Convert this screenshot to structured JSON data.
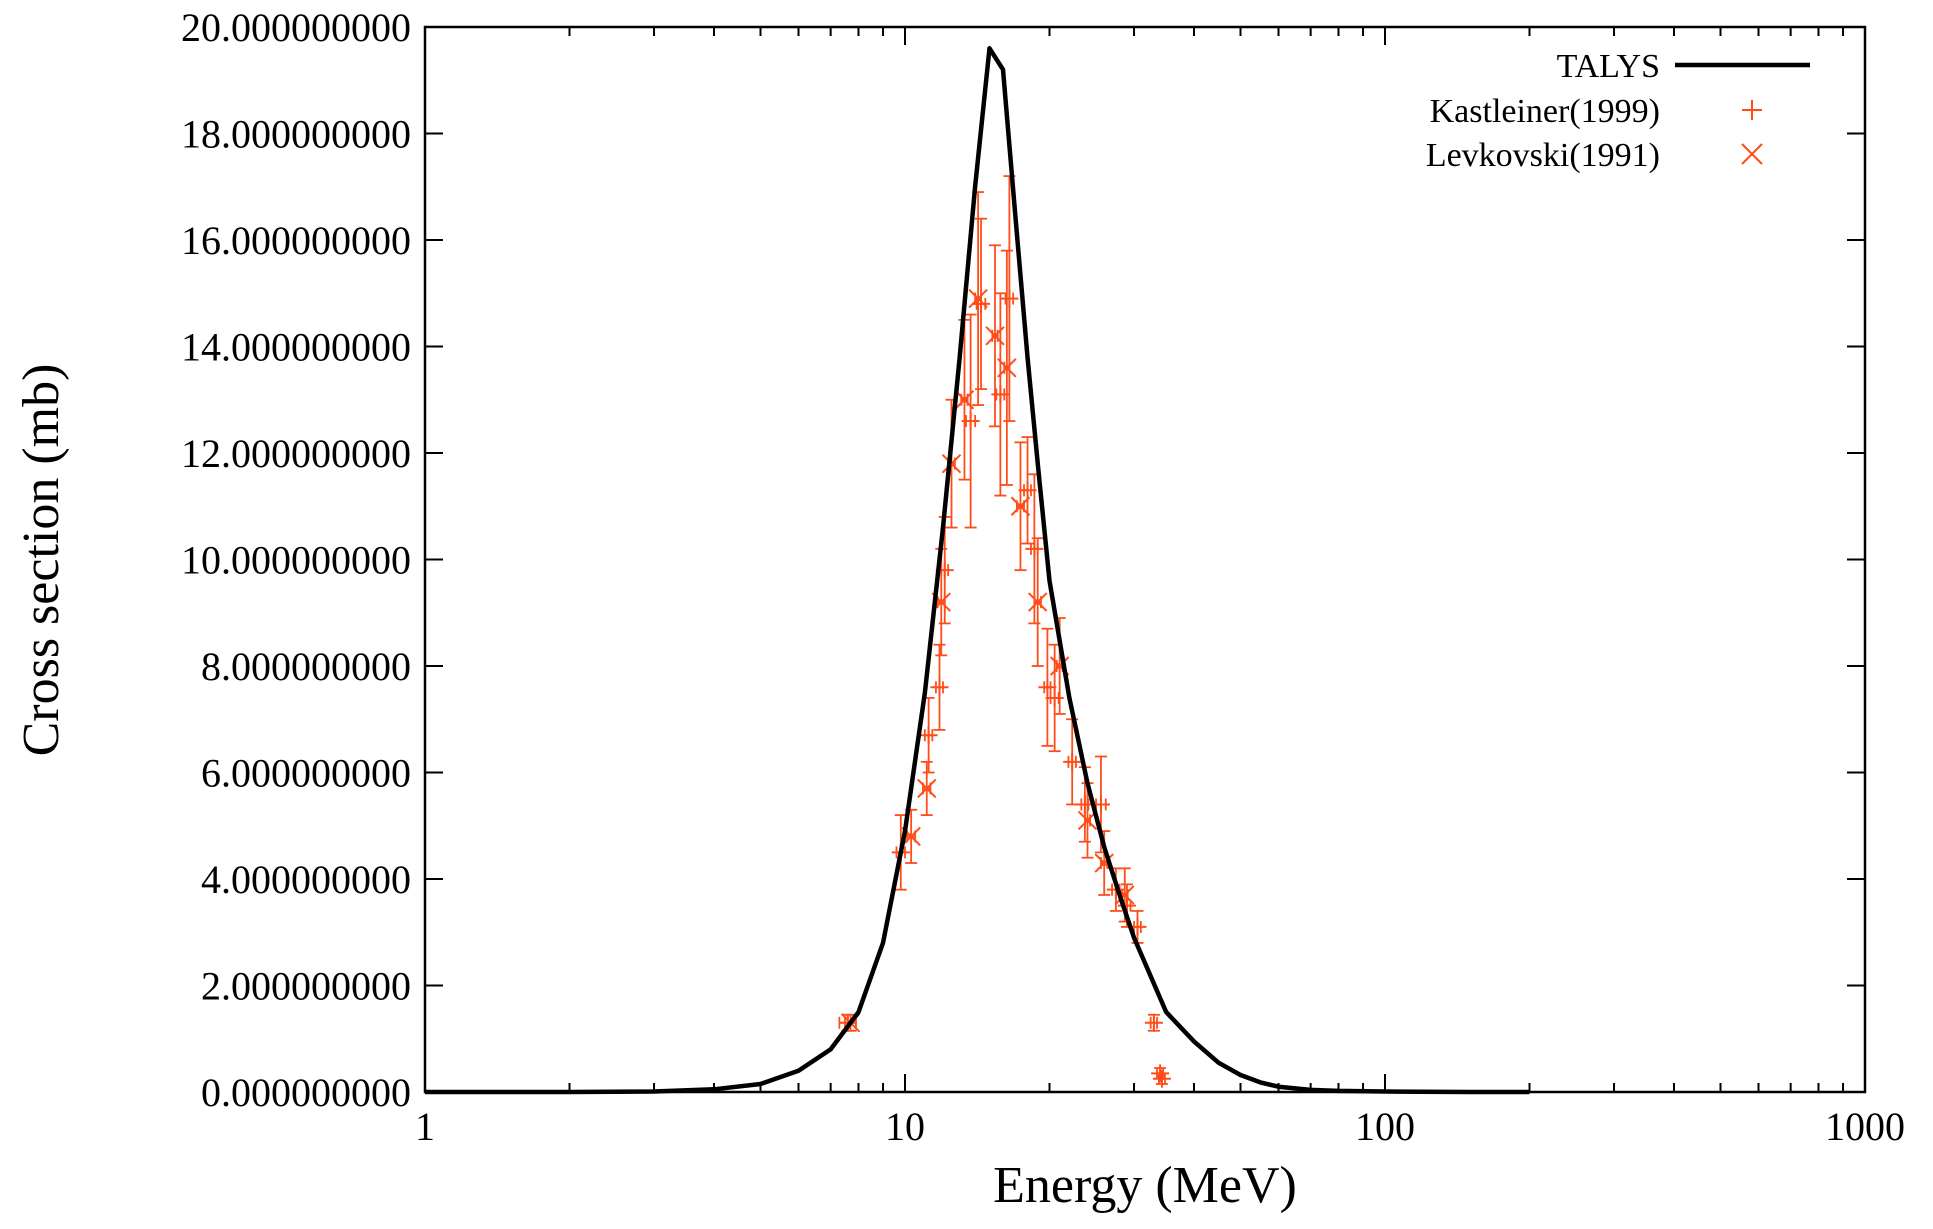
{
  "chart_data": {
    "type": "line",
    "xlabel": "Energy (MeV)",
    "ylabel": "Cross section (mb)",
    "x_scale": "log",
    "xlim": [
      1,
      1000
    ],
    "ylim": [
      0,
      20
    ],
    "x_ticks": [
      {
        "value": 1,
        "label": "1"
      },
      {
        "value": 10,
        "label": "10"
      },
      {
        "value": 100,
        "label": "100"
      },
      {
        "value": 1000,
        "label": "1000"
      }
    ],
    "y_ticks": [
      {
        "value": 0,
        "label": "0.000000000"
      },
      {
        "value": 2,
        "label": "2.000000000"
      },
      {
        "value": 4,
        "label": "4.000000000"
      },
      {
        "value": 6,
        "label": "6.000000000"
      },
      {
        "value": 8,
        "label": "8.000000000"
      },
      {
        "value": 10,
        "label": "10.000000000"
      },
      {
        "value": 12,
        "label": "12.000000000"
      },
      {
        "value": 14,
        "label": "14.000000000"
      },
      {
        "value": 16,
        "label": "16.000000000"
      },
      {
        "value": 18,
        "label": "18.000000000"
      },
      {
        "value": 20,
        "label": "20.000000000"
      }
    ],
    "grid": false,
    "legend_position": "top-right",
    "series": [
      {
        "name": "TALYS",
        "kind": "line",
        "color": "#000000",
        "points": [
          [
            1,
            0
          ],
          [
            2,
            0
          ],
          [
            3,
            0.01
          ],
          [
            4,
            0.05
          ],
          [
            5,
            0.15
          ],
          [
            6,
            0.4
          ],
          [
            7,
            0.8
          ],
          [
            8,
            1.5
          ],
          [
            9,
            2.8
          ],
          [
            10,
            4.9
          ],
          [
            11,
            7.5
          ],
          [
            12,
            10.6
          ],
          [
            13,
            13.8
          ],
          [
            14,
            17.0
          ],
          [
            15,
            19.6
          ],
          [
            16,
            19.2
          ],
          [
            17,
            16.4
          ],
          [
            18,
            13.8
          ],
          [
            19,
            11.6
          ],
          [
            20,
            9.6
          ],
          [
            22,
            7.4
          ],
          [
            24,
            5.8
          ],
          [
            26,
            4.6
          ],
          [
            28,
            3.7
          ],
          [
            30,
            2.9
          ],
          [
            35,
            1.5
          ],
          [
            40,
            0.95
          ],
          [
            45,
            0.55
          ],
          [
            50,
            0.32
          ],
          [
            55,
            0.18
          ],
          [
            60,
            0.1
          ],
          [
            70,
            0.04
          ],
          [
            80,
            0.02
          ],
          [
            100,
            0.01
          ],
          [
            150,
            0
          ],
          [
            200,
            0
          ]
        ]
      },
      {
        "name": "Kastleiner(1999)",
        "kind": "plus",
        "color": "#ff4d1a",
        "points": [
          {
            "x": 7.6,
            "y": 1.3,
            "dx": 0.3,
            "dy": 0.15
          },
          {
            "x": 9.8,
            "y": 4.5,
            "dx": 0.2,
            "dy": 0.7
          },
          {
            "x": 11.2,
            "y": 6.7,
            "dx": 0.2,
            "dy": 0.7
          },
          {
            "x": 11.8,
            "y": 7.6,
            "dx": 0.2,
            "dy": 0.8
          },
          {
            "x": 12.1,
            "y": 9.8,
            "dx": 0.2,
            "dy": 1.0
          },
          {
            "x": 13.7,
            "y": 12.6,
            "dx": 0.3,
            "dy": 2.0
          },
          {
            "x": 14.4,
            "y": 14.8,
            "dx": 0.3,
            "dy": 1.6
          },
          {
            "x": 15.8,
            "y": 13.1,
            "dx": 0.3,
            "dy": 1.9
          },
          {
            "x": 16.5,
            "y": 14.9,
            "dx": 0.3,
            "dy": 2.3
          },
          {
            "x": 18.0,
            "y": 11.3,
            "dx": 0.3,
            "dy": 1.0
          },
          {
            "x": 18.6,
            "y": 10.2,
            "dx": 0.3,
            "dy": 1.4
          },
          {
            "x": 19.8,
            "y": 7.6,
            "dx": 0.3,
            "dy": 1.1
          },
          {
            "x": 20.5,
            "y": 7.4,
            "dx": 0.4,
            "dy": 1.0
          },
          {
            "x": 22.3,
            "y": 6.2,
            "dx": 0.4,
            "dy": 0.8
          },
          {
            "x": 23.7,
            "y": 5.4,
            "dx": 0.4,
            "dy": 0.7
          },
          {
            "x": 25.6,
            "y": 5.4,
            "dx": 0.6,
            "dy": 0.9
          },
          {
            "x": 27.5,
            "y": 3.8,
            "dx": 0.5,
            "dy": 0.4
          },
          {
            "x": 29.0,
            "y": 3.5,
            "dx": 0.5,
            "dy": 0.4
          },
          {
            "x": 30.5,
            "y": 3.1,
            "dx": 0.5,
            "dy": 0.3
          },
          {
            "x": 33.0,
            "y": 1.3,
            "dx": 0.5,
            "dy": 0.15
          },
          {
            "x": 34.0,
            "y": 0.35,
            "dx": 0.5,
            "dy": 0.1
          },
          {
            "x": 34.3,
            "y": 0.25,
            "dx": 0.5,
            "dy": 0.1
          }
        ]
      },
      {
        "name": "Levkovski(1991)",
        "kind": "cross",
        "color": "#ff4d1a",
        "points": [
          {
            "x": 7.7,
            "y": 1.3,
            "dx": 0.2,
            "dy": 0.15
          },
          {
            "x": 10.3,
            "y": 4.8,
            "dx": 0.2,
            "dy": 0.5
          },
          {
            "x": 11.1,
            "y": 5.7,
            "dx": 0.2,
            "dy": 0.5
          },
          {
            "x": 11.9,
            "y": 9.2,
            "dx": 0.2,
            "dy": 1.0
          },
          {
            "x": 12.5,
            "y": 11.8,
            "dx": 0.2,
            "dy": 1.2
          },
          {
            "x": 13.3,
            "y": 13.0,
            "dx": 0.2,
            "dy": 1.5
          },
          {
            "x": 14.2,
            "y": 14.9,
            "dx": 0.2,
            "dy": 2.0
          },
          {
            "x": 15.4,
            "y": 14.2,
            "dx": 0.2,
            "dy": 1.7
          },
          {
            "x": 16.3,
            "y": 13.6,
            "dx": 0.2,
            "dy": 2.2
          },
          {
            "x": 17.4,
            "y": 11.0,
            "dx": 0.3,
            "dy": 1.2
          },
          {
            "x": 18.9,
            "y": 9.2,
            "dx": 0.3,
            "dy": 1.2
          },
          {
            "x": 21.0,
            "y": 8.0,
            "dx": 0.3,
            "dy": 0.9
          },
          {
            "x": 24.0,
            "y": 5.1,
            "dx": 0.3,
            "dy": 0.7
          },
          {
            "x": 26.0,
            "y": 4.3,
            "dx": 0.4,
            "dy": 0.6
          },
          {
            "x": 28.7,
            "y": 3.7,
            "dx": 0.4,
            "dy": 0.5
          }
        ]
      }
    ]
  }
}
